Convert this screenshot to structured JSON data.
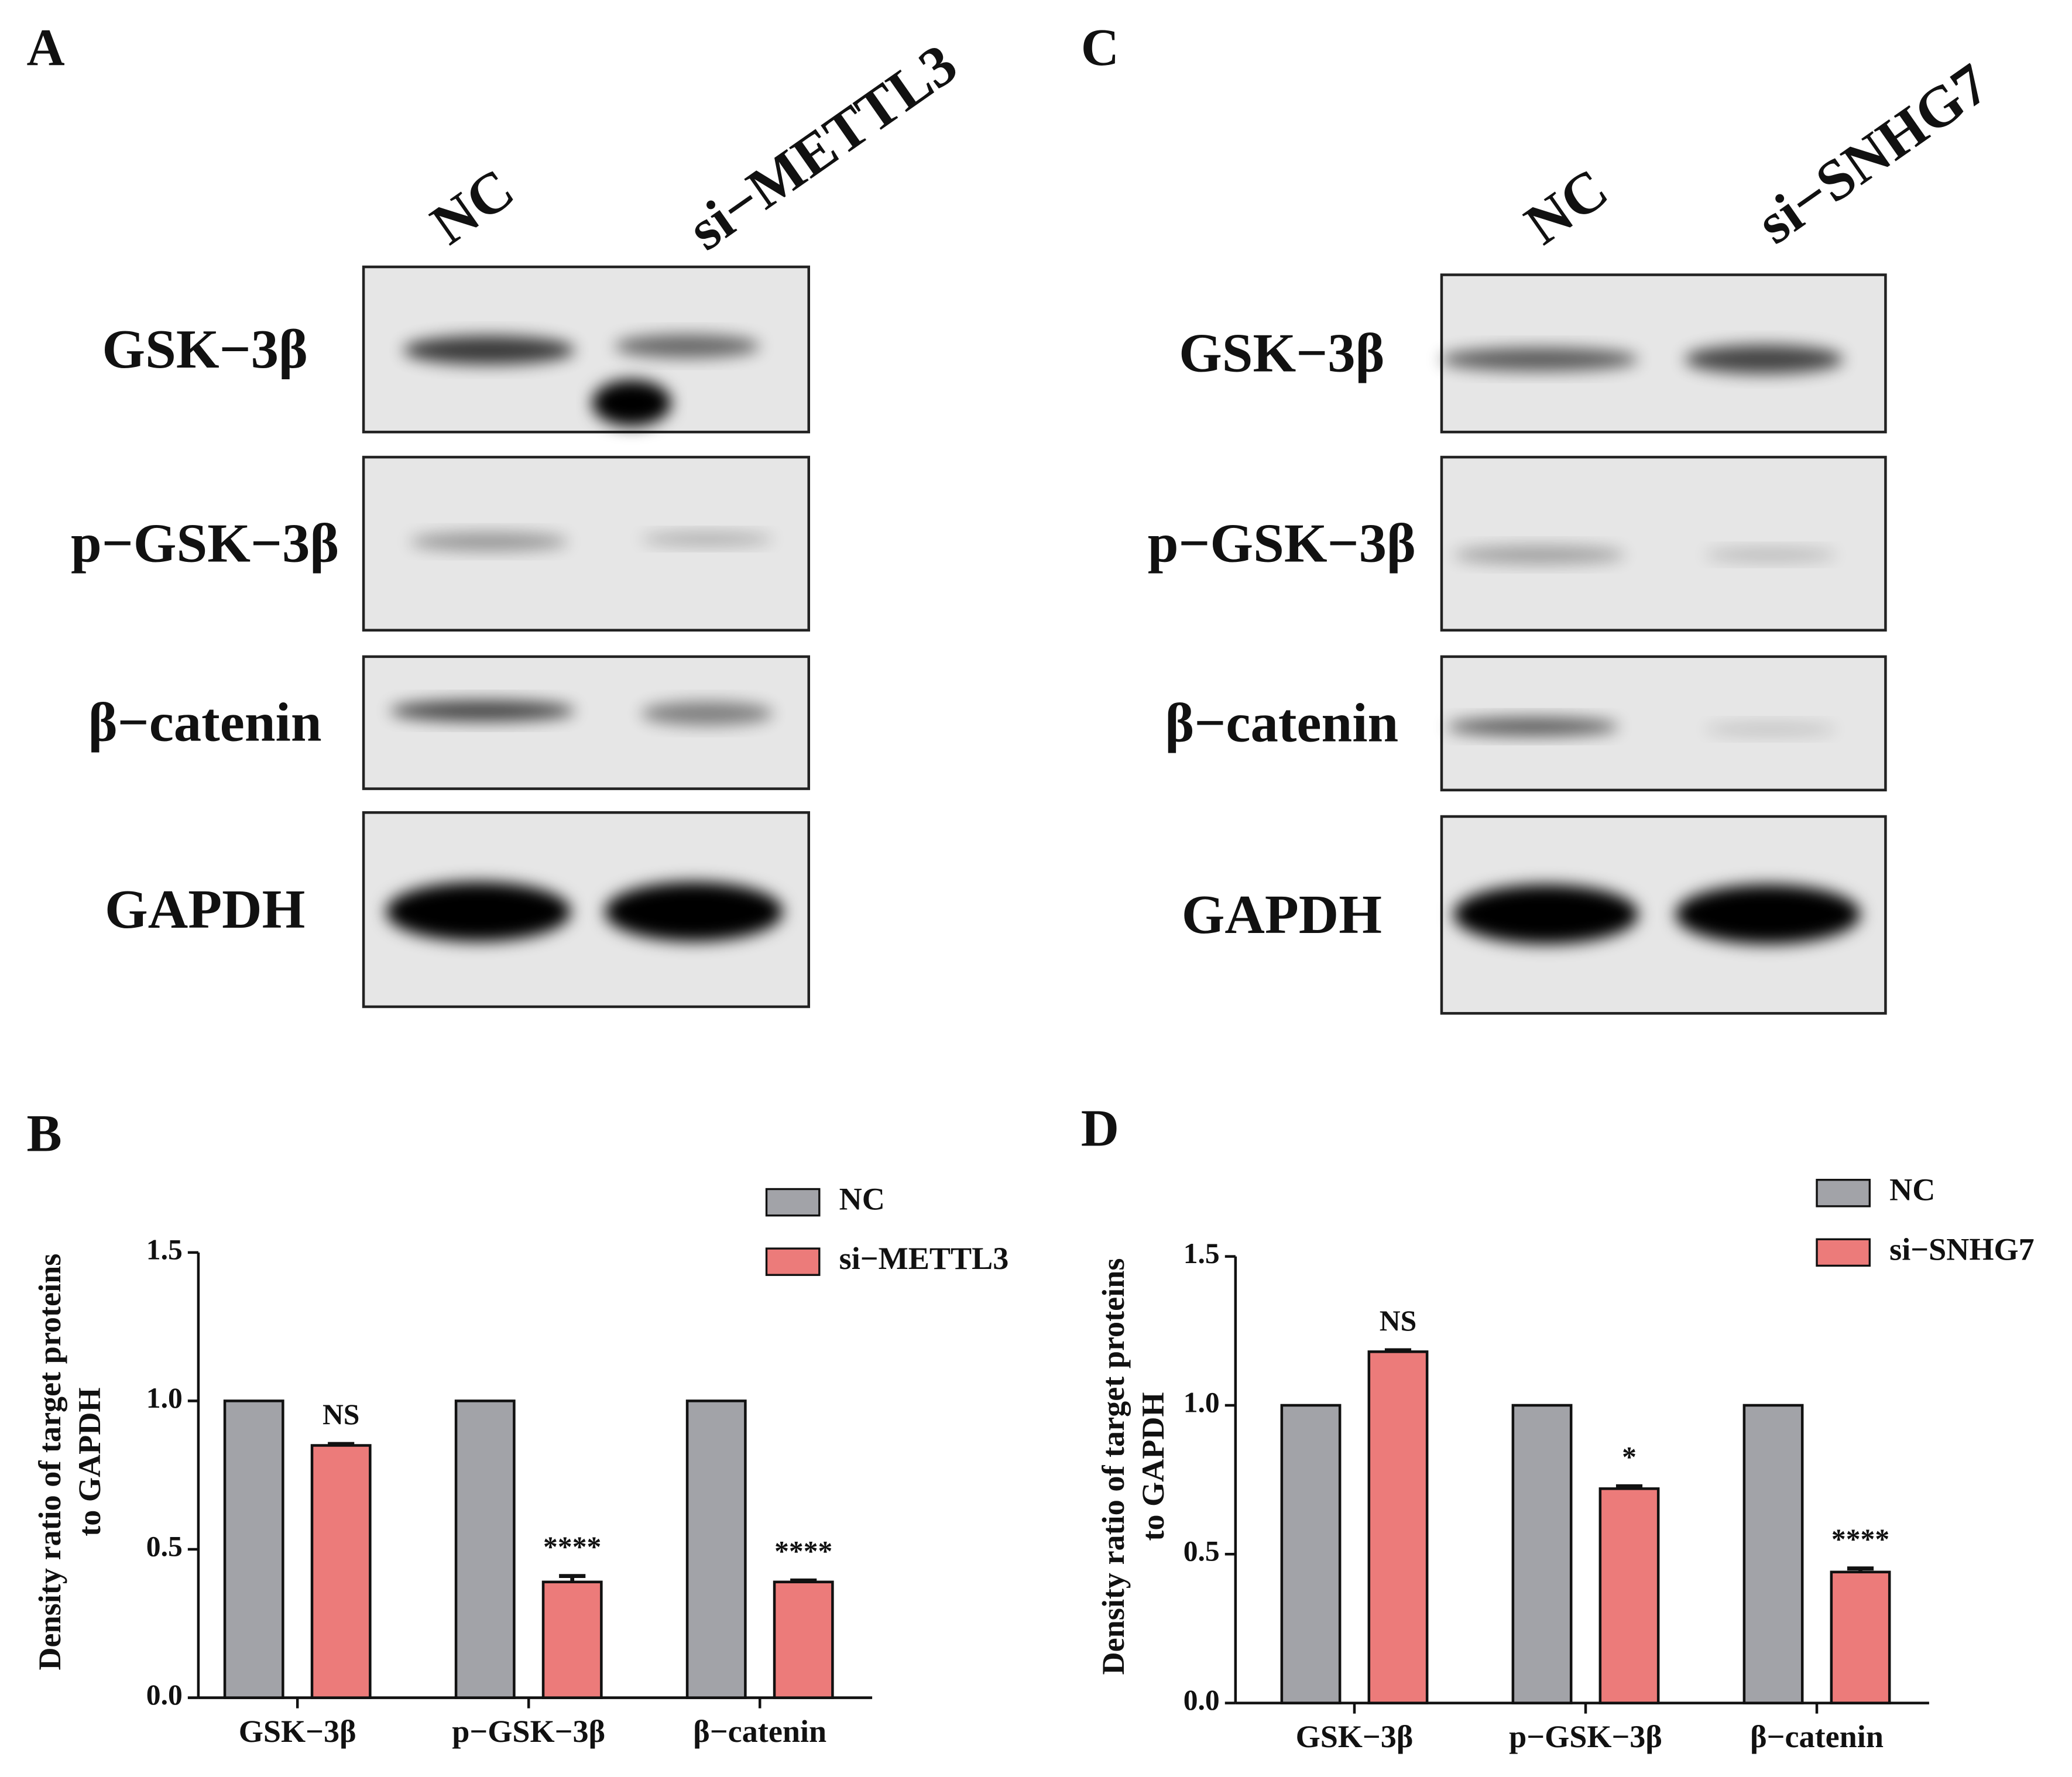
{
  "panels": [
    "A",
    "B",
    "C",
    "D"
  ],
  "blots": [
    {
      "lanes": [
        "NC",
        "si−METTL3"
      ],
      "rows": [
        "GSK−3β",
        "p−GSK−3β",
        "β−catenin",
        "GAPDH"
      ]
    },
    {
      "lanes": [
        "NC",
        "si−SNHG7"
      ],
      "rows": [
        "GSK−3β",
        "p−GSK−3β",
        "β−catenin",
        "GAPDH"
      ]
    }
  ],
  "chart_data": [
    {
      "type": "bar",
      "ylabel": [
        "Density ratio of target proteins",
        "to GAPDH"
      ],
      "categories": [
        "GSK−3β",
        "p−GSK−3β",
        "β−catenin"
      ],
      "series": [
        {
          "name": "NC",
          "color": "#a2a3a8",
          "values": [
            1,
            1,
            1
          ]
        },
        {
          "name": "si−METTL3",
          "color": "#ec7b7a",
          "values": [
            0.85,
            0.39,
            0.39
          ],
          "errors": [
            0.005,
            0.02,
            0.005
          ],
          "annotations": [
            "NS",
            "****",
            "****"
          ]
        }
      ],
      "ylim": [
        0,
        1.5
      ],
      "yticks": [
        {
          "value": 0,
          "label": "0.0"
        },
        0.5,
        {
          "value": 1,
          "label": "1.0"
        },
        1.5
      ]
    },
    {
      "type": "bar",
      "ylabel": [
        "Density ratio of target proteins",
        "to GAPDH"
      ],
      "categories": [
        "GSK−3β",
        "p−GSK−3β",
        "β−catenin"
      ],
      "series": [
        {
          "name": "NC",
          "color": "#a2a3a8",
          "values": [
            1,
            1,
            1
          ]
        },
        {
          "name": "si−SNHG7",
          "color": "#ec7b7a",
          "values": [
            1.18,
            0.72,
            0.44
          ],
          "errors": [
            0.005,
            0.008,
            0.012
          ],
          "annotations": [
            "NS",
            "*",
            "****"
          ]
        }
      ],
      "ylim": [
        0,
        1.5
      ],
      "yticks": [
        {
          "value": 0,
          "label": "0.0"
        },
        0.5,
        {
          "value": 1,
          "label": "1.0"
        },
        1.5
      ]
    }
  ]
}
